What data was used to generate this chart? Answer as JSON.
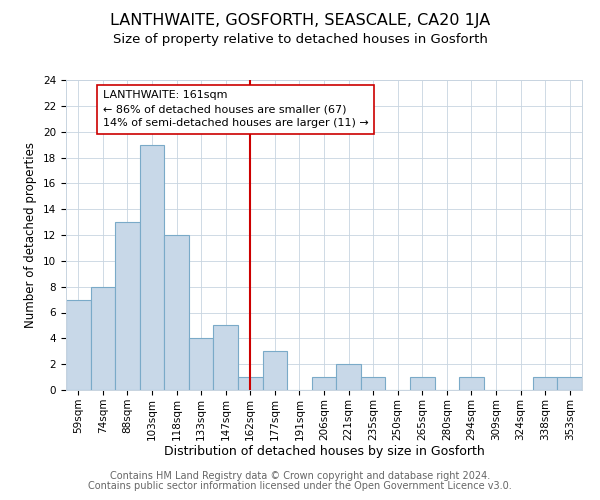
{
  "title": "LANTHWAITE, GOSFORTH, SEASCALE, CA20 1JA",
  "subtitle": "Size of property relative to detached houses in Gosforth",
  "xlabel": "Distribution of detached houses by size in Gosforth",
  "ylabel": "Number of detached properties",
  "bin_labels": [
    "59sqm",
    "74sqm",
    "88sqm",
    "103sqm",
    "118sqm",
    "133sqm",
    "147sqm",
    "162sqm",
    "177sqm",
    "191sqm",
    "206sqm",
    "221sqm",
    "235sqm",
    "250sqm",
    "265sqm",
    "280sqm",
    "294sqm",
    "309sqm",
    "324sqm",
    "338sqm",
    "353sqm"
  ],
  "bar_heights": [
    7,
    8,
    13,
    19,
    12,
    4,
    5,
    1,
    3,
    0,
    1,
    2,
    1,
    0,
    1,
    0,
    1,
    0,
    0,
    1,
    1
  ],
  "bar_color": "#c8d8e8",
  "bar_edge_color": "#7aaac8",
  "vline_x_index": 7,
  "vline_color": "#cc0000",
  "annotation_text": "LANTHWAITE: 161sqm\n← 86% of detached houses are smaller (67)\n14% of semi-detached houses are larger (11) →",
  "annotation_box_color": "#ffffff",
  "annotation_box_edge_color": "#cc0000",
  "ylim": [
    0,
    24
  ],
  "yticks": [
    0,
    2,
    4,
    6,
    8,
    10,
    12,
    14,
    16,
    18,
    20,
    22,
    24
  ],
  "footer_line1": "Contains HM Land Registry data © Crown copyright and database right 2024.",
  "footer_line2": "Contains public sector information licensed under the Open Government Licence v3.0.",
  "background_color": "#ffffff",
  "grid_color": "#c8d4e0",
  "title_fontsize": 11.5,
  "subtitle_fontsize": 9.5,
  "xlabel_fontsize": 9,
  "ylabel_fontsize": 8.5,
  "tick_fontsize": 7.5,
  "footer_fontsize": 7,
  "annotation_fontsize": 8
}
